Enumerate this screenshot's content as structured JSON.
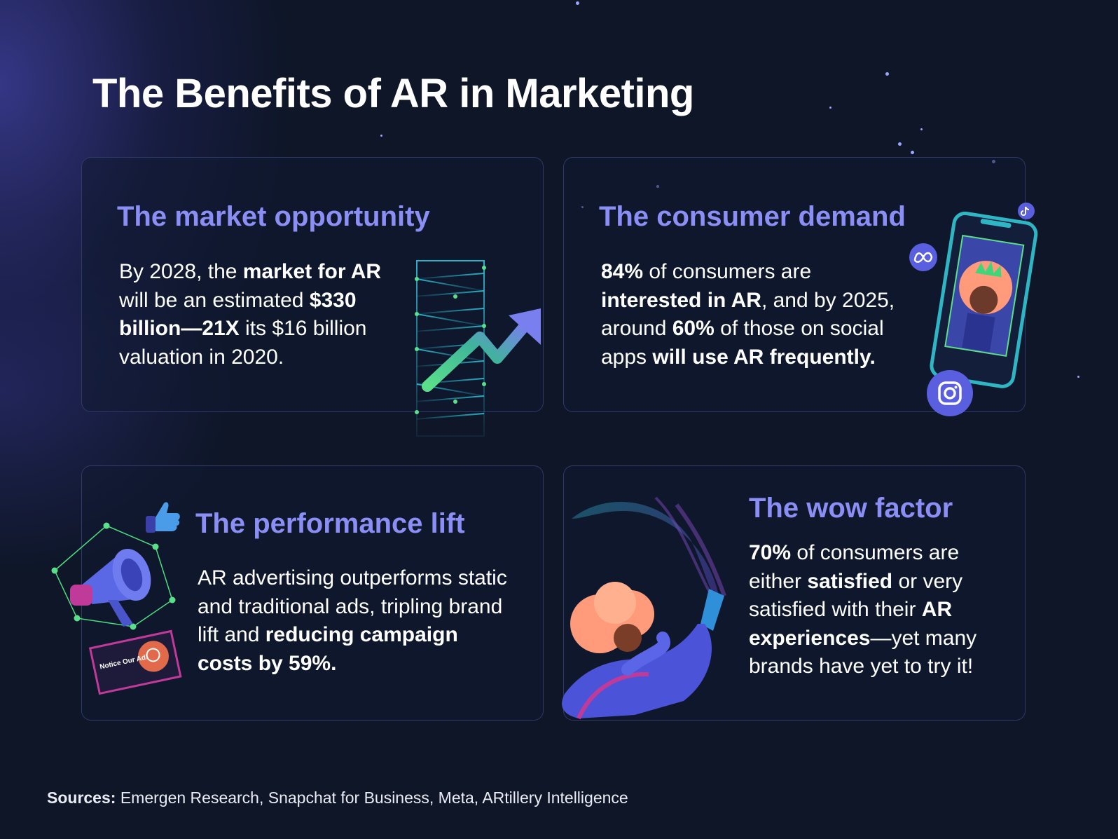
{
  "title": "The Benefits of AR in Marketing",
  "cards": [
    {
      "title": "The market opportunity",
      "body": [
        {
          "t": "By 2028, the ",
          "b": false
        },
        {
          "t": "market for AR",
          "b": true
        },
        {
          "t": " will be an estimated ",
          "b": false
        },
        {
          "t": "$330 billion—21X",
          "b": true
        },
        {
          "t": " its $16 billion valuation in 2020.",
          "b": false
        }
      ]
    },
    {
      "title": "The consumer demand",
      "body": [
        {
          "t": "84%",
          "b": true
        },
        {
          "t": " of consumers are ",
          "b": false
        },
        {
          "t": "interested in AR",
          "b": true
        },
        {
          "t": ", and by 2025, around ",
          "b": false
        },
        {
          "t": "60%",
          "b": true
        },
        {
          "t": " of those on social apps ",
          "b": false
        },
        {
          "t": "will use AR frequently.",
          "b": true
        }
      ]
    },
    {
      "title": "The performance lift",
      "body": [
        {
          "t": "AR advertising outperforms static and traditional ads, tripling brand lift and ",
          "b": false
        },
        {
          "t": "reducing campaign costs by 59%.",
          "b": true
        }
      ]
    },
    {
      "title": "The wow factor",
      "body": [
        {
          "t": "70%",
          "b": true
        },
        {
          "t": " of consumers are either ",
          "b": false
        },
        {
          "t": "satisfied",
          "b": true
        },
        {
          "t": " or very satisfied with their ",
          "b": false
        },
        {
          "t": "AR experiences",
          "b": true
        },
        {
          "t": "—yet many brands have yet to try it!",
          "b": false
        }
      ]
    }
  ],
  "illustrations": {
    "billboard_text": "Notice Our Ad!"
  },
  "sources": {
    "label": "Sources:",
    "text": " Emergen Research, Snapchat for Business, Meta, ARtillery Intelligence"
  },
  "colors": {
    "background": "#0e1628",
    "heading_accent": "#8b8ff5",
    "card_border": "#2e3a6a",
    "growth_green": "#5be08a",
    "arrow_purple": "#7a7ff0"
  },
  "icons": [
    "growth-arrow-icon",
    "grid-tower-icon",
    "smartphone-icon",
    "meta-logo-icon",
    "instagram-logo-icon",
    "tiktok-logo-icon",
    "megaphone-icon",
    "thumbs-up-icon",
    "billboard-icon",
    "woman-with-phone-illustration"
  ]
}
